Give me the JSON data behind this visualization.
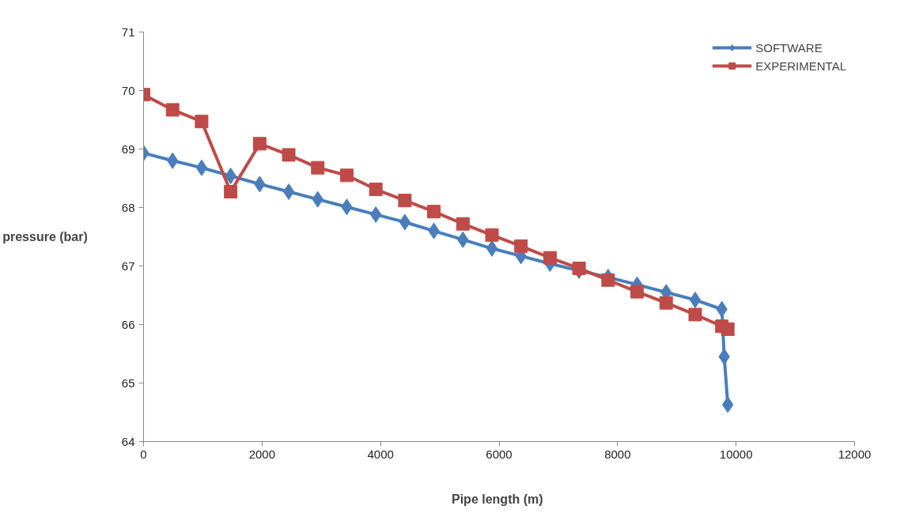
{
  "chart_data": {
    "type": "line",
    "xlabel": "Pipe length  (m)",
    "ylabel": "pressure (bar)",
    "xlim": [
      0,
      12000
    ],
    "xticks": [
      0,
      2000,
      4000,
      6000,
      8000,
      10000,
      12000
    ],
    "ylim": [
      64,
      71
    ],
    "yticks": [
      64,
      65,
      66,
      67,
      68,
      69,
      70,
      71
    ],
    "grid": false,
    "legend": "top right",
    "line_style": "solid",
    "series": [
      {
        "name": "SOFTWARE",
        "color": "#4a7ebb",
        "marker": "diamond",
        "x": [
          0,
          490,
          980,
          1470,
          1960,
          2450,
          2940,
          3430,
          3920,
          4410,
          4900,
          5390,
          5880,
          6370,
          6860,
          7350,
          7840,
          8330,
          8820,
          9310,
          9760,
          9800,
          9860
        ],
        "values": [
          68.93,
          68.8,
          68.68,
          68.54,
          68.4,
          68.27,
          68.14,
          68.01,
          67.88,
          67.75,
          67.6,
          67.45,
          67.3,
          67.17,
          67.04,
          66.92,
          66.81,
          66.68,
          66.55,
          66.42,
          66.26,
          65.45,
          64.63
        ]
      },
      {
        "name": "EXPERIMENTAL",
        "color": "#be4b48",
        "marker": "square",
        "x": [
          0,
          490,
          980,
          1470,
          1960,
          2450,
          2940,
          3430,
          3920,
          4410,
          4900,
          5390,
          5880,
          6370,
          6860,
          7350,
          7840,
          8330,
          8820,
          9310,
          9760,
          9860
        ],
        "values": [
          69.93,
          69.67,
          69.47,
          68.27,
          69.09,
          68.9,
          68.68,
          68.55,
          68.31,
          68.12,
          67.93,
          67.72,
          67.53,
          67.34,
          67.14,
          66.96,
          66.76,
          66.56,
          66.37,
          66.17,
          65.97,
          65.92
        ]
      }
    ]
  }
}
